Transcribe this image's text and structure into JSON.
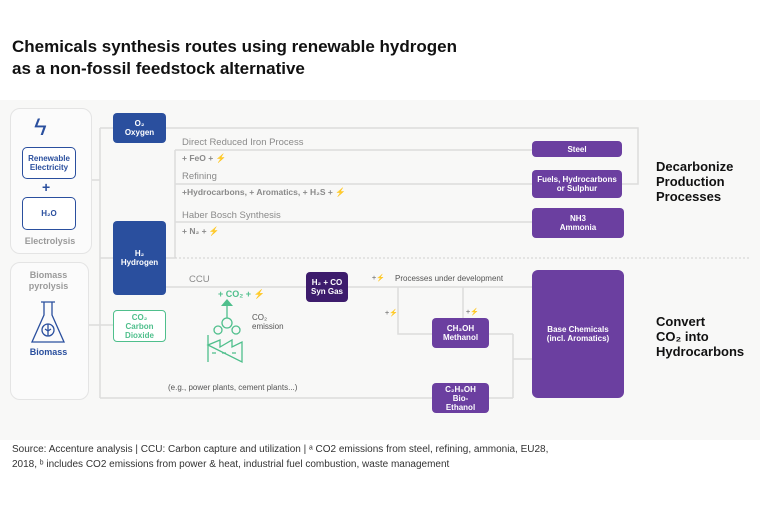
{
  "title": "Chemicals synthesis routes using renewable hydrogen\nas a non-fossil feedstock alternative",
  "inputs": {
    "renewable_electricity": "Renewable\nElectricity",
    "plus": "+",
    "h2o": "H₂O",
    "electrolysis": "Electrolysis",
    "biomass_pyrolysis": "Biomass\npyrolysis",
    "biomass": "Biomass"
  },
  "nodes": {
    "oxygen": "O₂\nOxygen",
    "hydrogen": "H₂\nHydrogen",
    "co2": "CO₂\nCarbon\nDioxide",
    "syngas": "H₂ + CO\nSyn Gas",
    "methanol": "CH₃OH\nMethanol",
    "ethanol": "C₂H₅OH\nBio-\nEthanol",
    "steel": "Steel",
    "fuels": "Fuels, Hydrocarbons\nor Sulphur",
    "ammonia": "NH3\nAmmonia",
    "base_chemicals": "Base Chemicals\n(incl. Aromatics)"
  },
  "processes": [
    {
      "name": "Direct Reduced Iron Process",
      "inputs": "+ FeO + ⚡"
    },
    {
      "name": "Refining",
      "inputs": "+Hydrocarbons, + Aromatics, + H₂S + ⚡"
    },
    {
      "name": "Haber Bosch Synthesis",
      "inputs": "+ N₂ + ⚡"
    }
  ],
  "ccu": {
    "label": "CCU",
    "inputs": "+ CO₂ + ⚡",
    "emission": "CO₂\nemission",
    "energy": "+⚡",
    "under_dev": "Processes under development",
    "examples": "(e.g., power plants, cement plants...)"
  },
  "sections": {
    "decarbonize": "Decarbonize\nProduction\nProcesses",
    "convert": "Convert\nCO₂ into\nHydrocarbons"
  },
  "source": "Source: Accenture analysis | CCU: Carbon capture and utilization | ᵃ CO2 emissions from steel, refining, ammonia, EU28, 2018, ᵇ includes CO2 emissions from power & heat, industrial fuel combustion, waste management",
  "colors": {
    "blue": "#2a4f9e",
    "purple": "#6b3fa0",
    "dark_purple": "#3d1c6c",
    "green": "#4fbf8c"
  }
}
